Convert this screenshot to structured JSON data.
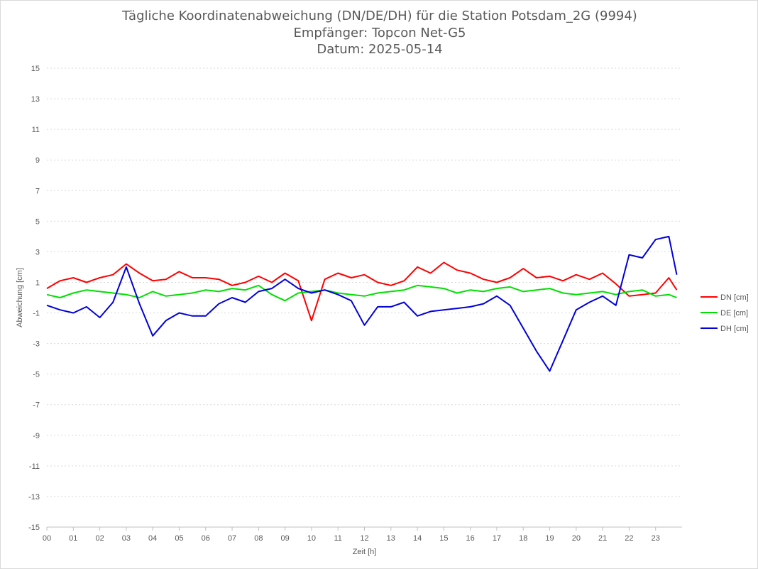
{
  "chart_data": {
    "type": "line",
    "title": "Tägliche Koordinatenabweichung (DN/DE/DH) für die Station Potsdam_2G (9994)",
    "subtitle_receiver": "Empfänger: Topcon Net-G5",
    "subtitle_date": "Datum: 2025-05-14",
    "xlabel": "Zeit [h]",
    "ylabel": "Abweichung [cm]",
    "xlim": [
      0,
      24
    ],
    "ylim": [
      -15,
      15
    ],
    "x_ticks": [
      "00",
      "01",
      "02",
      "03",
      "04",
      "05",
      "06",
      "07",
      "08",
      "09",
      "10",
      "11",
      "12",
      "13",
      "14",
      "15",
      "16",
      "17",
      "18",
      "19",
      "20",
      "21",
      "22",
      "23"
    ],
    "y_ticks": [
      15,
      13,
      11,
      9,
      7,
      5,
      3,
      1,
      -1,
      -3,
      -5,
      -7,
      -9,
      -11,
      -13,
      -15
    ],
    "grid": "horizontal dotted",
    "legend_position": "right",
    "series": [
      {
        "name": "DN [cm]",
        "color": "#ff0000",
        "x": [
          0,
          0.5,
          1,
          1.5,
          2,
          2.5,
          3,
          3.5,
          4,
          4.5,
          5,
          5.5,
          6,
          6.5,
          7,
          7.5,
          8,
          8.5,
          9,
          9.5,
          10,
          10.5,
          11,
          11.5,
          12,
          12.5,
          13,
          13.5,
          14,
          14.5,
          15,
          15.5,
          16,
          16.5,
          17,
          17.5,
          18,
          18.5,
          19,
          19.5,
          20,
          20.5,
          21,
          21.5,
          22,
          22.5,
          23,
          23.5,
          23.8
        ],
        "y": [
          0.6,
          1.1,
          1.3,
          1.0,
          1.3,
          1.5,
          2.2,
          1.6,
          1.1,
          1.2,
          1.7,
          1.3,
          1.3,
          1.2,
          0.8,
          1.0,
          1.4,
          1.0,
          1.6,
          1.1,
          -1.5,
          1.2,
          1.6,
          1.3,
          1.5,
          1.0,
          0.8,
          1.1,
          2.0,
          1.6,
          2.3,
          1.8,
          1.6,
          1.2,
          1.0,
          1.3,
          1.9,
          1.3,
          1.4,
          1.1,
          1.5,
          1.2,
          1.6,
          0.9,
          0.1,
          0.2,
          0.3,
          1.3,
          0.5
        ]
      },
      {
        "name": "DE [cm]",
        "color": "#00e000",
        "x": [
          0,
          0.5,
          1,
          1.5,
          2,
          2.5,
          3,
          3.5,
          4,
          4.5,
          5,
          5.5,
          6,
          6.5,
          7,
          7.5,
          8,
          8.5,
          9,
          9.5,
          10,
          10.5,
          11,
          11.5,
          12,
          12.5,
          13,
          13.5,
          14,
          14.5,
          15,
          15.5,
          16,
          16.5,
          17,
          17.5,
          18,
          18.5,
          19,
          19.5,
          20,
          20.5,
          21,
          21.5,
          22,
          22.5,
          23,
          23.5,
          23.8
        ],
        "y": [
          0.2,
          0.0,
          0.3,
          0.5,
          0.4,
          0.3,
          0.2,
          0.0,
          0.4,
          0.1,
          0.2,
          0.3,
          0.5,
          0.4,
          0.6,
          0.5,
          0.8,
          0.2,
          -0.2,
          0.3,
          0.4,
          0.5,
          0.3,
          0.2,
          0.1,
          0.3,
          0.4,
          0.5,
          0.8,
          0.7,
          0.6,
          0.3,
          0.5,
          0.4,
          0.6,
          0.7,
          0.4,
          0.5,
          0.6,
          0.3,
          0.2,
          0.3,
          0.4,
          0.2,
          0.4,
          0.5,
          0.1,
          0.2,
          0.0
        ]
      },
      {
        "name": "DH [cm]",
        "color": "#0000dd",
        "x": [
          0,
          0.5,
          1,
          1.5,
          2,
          2.5,
          3,
          3.5,
          4,
          4.5,
          5,
          5.5,
          6,
          6.5,
          7,
          7.5,
          8,
          8.5,
          9,
          9.5,
          10,
          10.5,
          11,
          11.5,
          12,
          12.5,
          13,
          13.5,
          14,
          14.5,
          15,
          15.5,
          16,
          16.5,
          17,
          17.5,
          18,
          18.5,
          19,
          19.5,
          20,
          20.5,
          21,
          21.5,
          22,
          22.5,
          23,
          23.5,
          23.8
        ],
        "y": [
          -0.5,
          -0.8,
          -1.0,
          -0.6,
          -1.3,
          -0.3,
          2.0,
          -0.4,
          -2.5,
          -1.5,
          -1.0,
          -1.2,
          -1.2,
          -0.4,
          0.0,
          -0.3,
          0.4,
          0.6,
          1.2,
          0.6,
          0.3,
          0.5,
          0.2,
          -0.2,
          -1.8,
          -0.6,
          -0.6,
          -0.3,
          -1.2,
          -0.9,
          -0.8,
          -0.7,
          -0.6,
          -0.4,
          0.1,
          -0.5,
          -2.0,
          -3.5,
          -4.8,
          -2.8,
          -0.8,
          -0.3,
          0.1,
          -0.5,
          2.8,
          2.6,
          3.8,
          4.0,
          1.5
        ]
      }
    ]
  }
}
